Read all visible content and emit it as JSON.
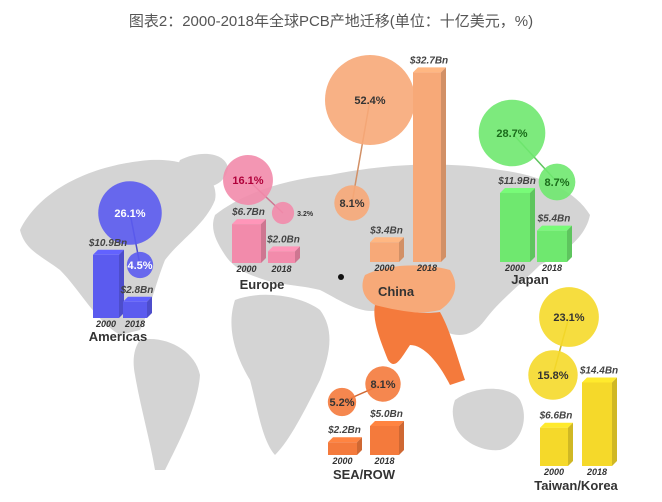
{
  "title": "图表2：2000-2018年全球PCB产地迁移(单位：十亿美元，%)",
  "chart_data": {
    "type": "bar",
    "title": "图表2：2000-2018年全球PCB产地迁移(单位：十亿美元，%)",
    "categories": [
      "2000",
      "2018"
    ],
    "unit": "Bn USD",
    "regions": [
      {
        "name": "Americas",
        "color": "#5b5bef",
        "values": [
          10.9,
          2.8
        ],
        "value_labels": [
          "$10.9Bn",
          "$2.8Bn"
        ],
        "shares": [
          26.1,
          4.5
        ],
        "share_labels": [
          "26.1%",
          "4.5%"
        ]
      },
      {
        "name": "Europe",
        "color": "#f28bab",
        "values": [
          6.7,
          2.0
        ],
        "value_labels": [
          "$6.7Bn",
          "$2.0Bn"
        ],
        "shares": [
          16.1,
          3.2
        ],
        "share_labels": [
          "16.1%",
          "3.2%"
        ]
      },
      {
        "name": "China",
        "color": "#f7a978",
        "values": [
          3.4,
          32.7
        ],
        "value_labels": [
          "$3.4Bn",
          "$32.7Bn"
        ],
        "shares": [
          8.1,
          52.4
        ],
        "share_labels": [
          "8.1%",
          "52.4%"
        ]
      },
      {
        "name": "Japan",
        "color": "#6fe86f",
        "values": [
          11.9,
          5.4
        ],
        "value_labels": [
          "$11.9Bn",
          "$5.4Bn"
        ],
        "shares": [
          28.7,
          8.7
        ],
        "share_labels": [
          "28.7%",
          "8.7%"
        ]
      },
      {
        "name": "SEA/ROW",
        "color": "#f47a3c",
        "values": [
          2.2,
          5.0
        ],
        "value_labels": [
          "$2.2Bn",
          "$5.0Bn"
        ],
        "shares": [
          5.2,
          8.1
        ],
        "share_labels": [
          "5.2%",
          "8.1%"
        ]
      },
      {
        "name": "Taiwan/Korea",
        "color": "#f5d92a",
        "values": [
          6.6,
          14.4
        ],
        "value_labels": [
          "$6.6Bn",
          "$14.4Bn"
        ],
        "shares": [
          15.8,
          23.1
        ],
        "share_labels": [
          "15.8%",
          "23.1%"
        ]
      }
    ]
  }
}
